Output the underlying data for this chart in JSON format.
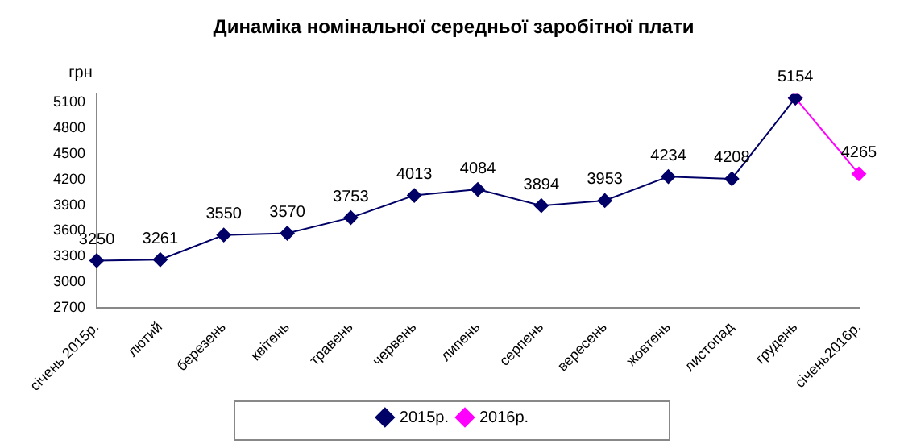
{
  "chart_data": {
    "type": "line",
    "title": "Динаміка номінальної середньої заробітної плати",
    "ylabel": "грн",
    "categories": [
      "січень 2015р.",
      "лютий",
      "березень",
      "квітень",
      "травень",
      "червень",
      "липень",
      "серпень",
      "вересень",
      "жовтень",
      "листопад",
      "грудень",
      "січень2016р."
    ],
    "series": [
      {
        "name": "2015р.",
        "color": "#000066",
        "values": [
          3250,
          3261,
          3550,
          3570,
          3753,
          4013,
          4084,
          3894,
          3953,
          4234,
          4208,
          5154,
          null
        ],
        "value_labels": [
          "3250",
          "3261",
          "3550",
          "3570",
          "3753",
          "4013",
          "4084",
          "3894",
          "3953",
          "4234",
          "4208",
          "5154",
          null
        ]
      },
      {
        "name": "2016р.",
        "color": "#ff00ff",
        "values": [
          null,
          null,
          null,
          null,
          null,
          null,
          null,
          null,
          null,
          null,
          null,
          5154,
          4265
        ],
        "value_labels": [
          null,
          null,
          null,
          null,
          null,
          null,
          null,
          null,
          null,
          null,
          null,
          null,
          "4265"
        ]
      }
    ],
    "ylim": [
      2700,
      5200
    ],
    "yticks": [
      2700,
      3000,
      3300,
      3600,
      3900,
      4200,
      4500,
      4800,
      5100
    ],
    "grid": false,
    "legend": "bottom",
    "marker": "diamond",
    "line_style": "solid"
  }
}
